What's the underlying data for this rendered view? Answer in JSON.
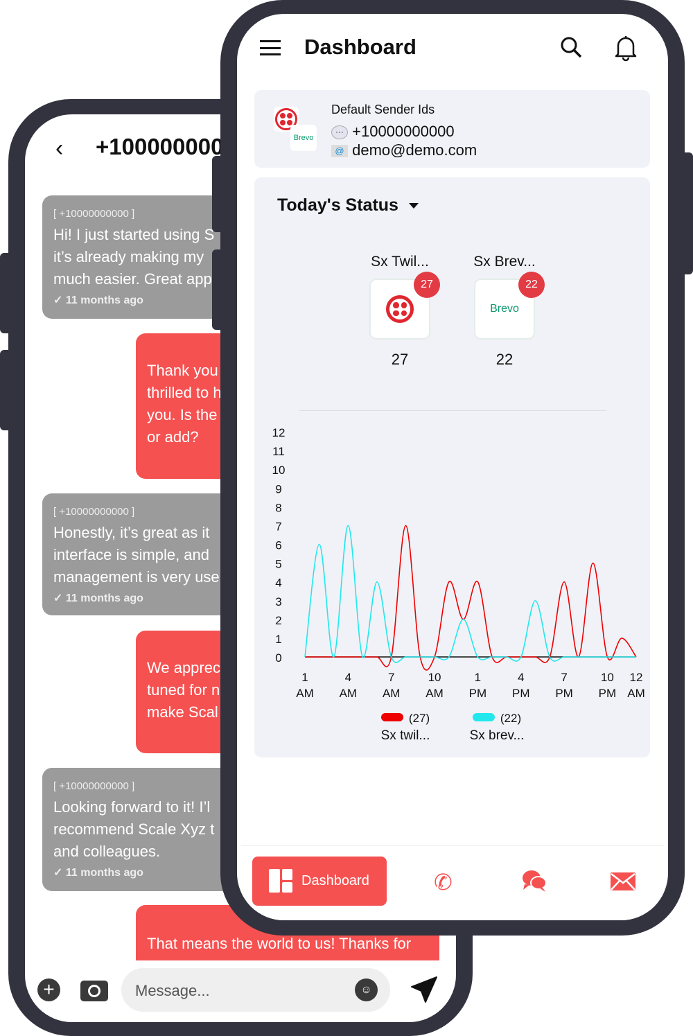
{
  "chat": {
    "title": "+100000000",
    "messages": [
      {
        "type": "in",
        "sender": "[ +10000000000 ]",
        "lines": [
          "Hi! I just started using S",
          "it’s already making my",
          "much easier. Great app"
        ],
        "meta": "11 months ago"
      },
      {
        "type": "out",
        "lines": [
          "Thank you",
          "thrilled to h",
          "you. Is the",
          "or add?"
        ]
      },
      {
        "type": "in",
        "sender": "[ +10000000000 ]",
        "lines": [
          "Honestly, it’s great as it",
          "interface is simple, and",
          "management is very use"
        ],
        "meta": "11 months ago"
      },
      {
        "type": "out",
        "lines": [
          "We apprec",
          "tuned for n",
          "make Scal"
        ]
      },
      {
        "type": "in",
        "sender": "[ +10000000000 ]",
        "lines": [
          "Looking forward to it! I’l",
          "recommend Scale Xyz t",
          "and colleagues."
        ],
        "meta": "11 months ago"
      },
      {
        "type": "out",
        "lines": [
          "That means the world to us! Thanks for"
        ]
      }
    ],
    "input_placeholder": "Message..."
  },
  "dashboard": {
    "title": "Dashboard",
    "sender_card": {
      "heading": "Default Sender Ids",
      "phone": "+10000000000",
      "email": "demo@demo.com",
      "brevo_logo": "Brevo"
    },
    "status": {
      "title": "Today's Status",
      "providers": [
        {
          "label": "Sx Twil...",
          "badge": "27",
          "count": "27",
          "logo": "twilio"
        },
        {
          "label": "Sx Brev...",
          "badge": "22",
          "count": "22",
          "logo": "Brevo"
        }
      ]
    },
    "nav": {
      "dashboard_label": "Dashboard"
    }
  },
  "colors": {
    "accent": "#f55151",
    "twilio_series": "#ee0000",
    "brevo_series": "#22e8ee"
  },
  "chart_data": {
    "type": "line",
    "x": [
      1,
      2,
      3,
      4,
      5,
      6,
      7,
      8,
      9,
      10,
      11,
      12,
      13,
      14,
      15,
      16,
      17,
      18,
      19,
      20,
      21,
      22,
      23,
      24
    ],
    "x_ticks": [
      {
        "x": 1,
        "l1": "1",
        "l2": "AM"
      },
      {
        "x": 4,
        "l1": "4",
        "l2": "AM"
      },
      {
        "x": 7,
        "l1": "7",
        "l2": "AM"
      },
      {
        "x": 10,
        "l1": "10",
        "l2": "AM"
      },
      {
        "x": 13,
        "l1": "1",
        "l2": "PM"
      },
      {
        "x": 16,
        "l1": "4",
        "l2": "PM"
      },
      {
        "x": 19,
        "l1": "7",
        "l2": "PM"
      },
      {
        "x": 22,
        "l1": "10",
        "l2": "PM"
      },
      {
        "x": 24,
        "l1": "12",
        "l2": "AM"
      }
    ],
    "y_ticks": [
      "0",
      "1",
      "2",
      "3",
      "4",
      "5",
      "6",
      "7",
      "8",
      "9",
      "10",
      "11",
      "12"
    ],
    "ylim": [
      0,
      12
    ],
    "grid": false,
    "legend_position": "bottom",
    "series": [
      {
        "name": "Sx twil...",
        "total": "(27)",
        "color": "#ee0000",
        "values": [
          0,
          0,
          0,
          0,
          0,
          0,
          0,
          7,
          0,
          0,
          4,
          2,
          4,
          0,
          0,
          0,
          0,
          0,
          4,
          0,
          5,
          0,
          1,
          0
        ]
      },
      {
        "name": "Sx brev...",
        "total": "(22)",
        "color": "#22e8ee",
        "values": [
          0,
          6,
          0,
          7,
          0,
          4,
          0,
          0,
          0,
          0,
          0,
          2,
          0,
          0,
          0,
          0,
          3,
          0,
          0,
          0,
          0,
          0,
          0,
          0
        ]
      }
    ]
  }
}
